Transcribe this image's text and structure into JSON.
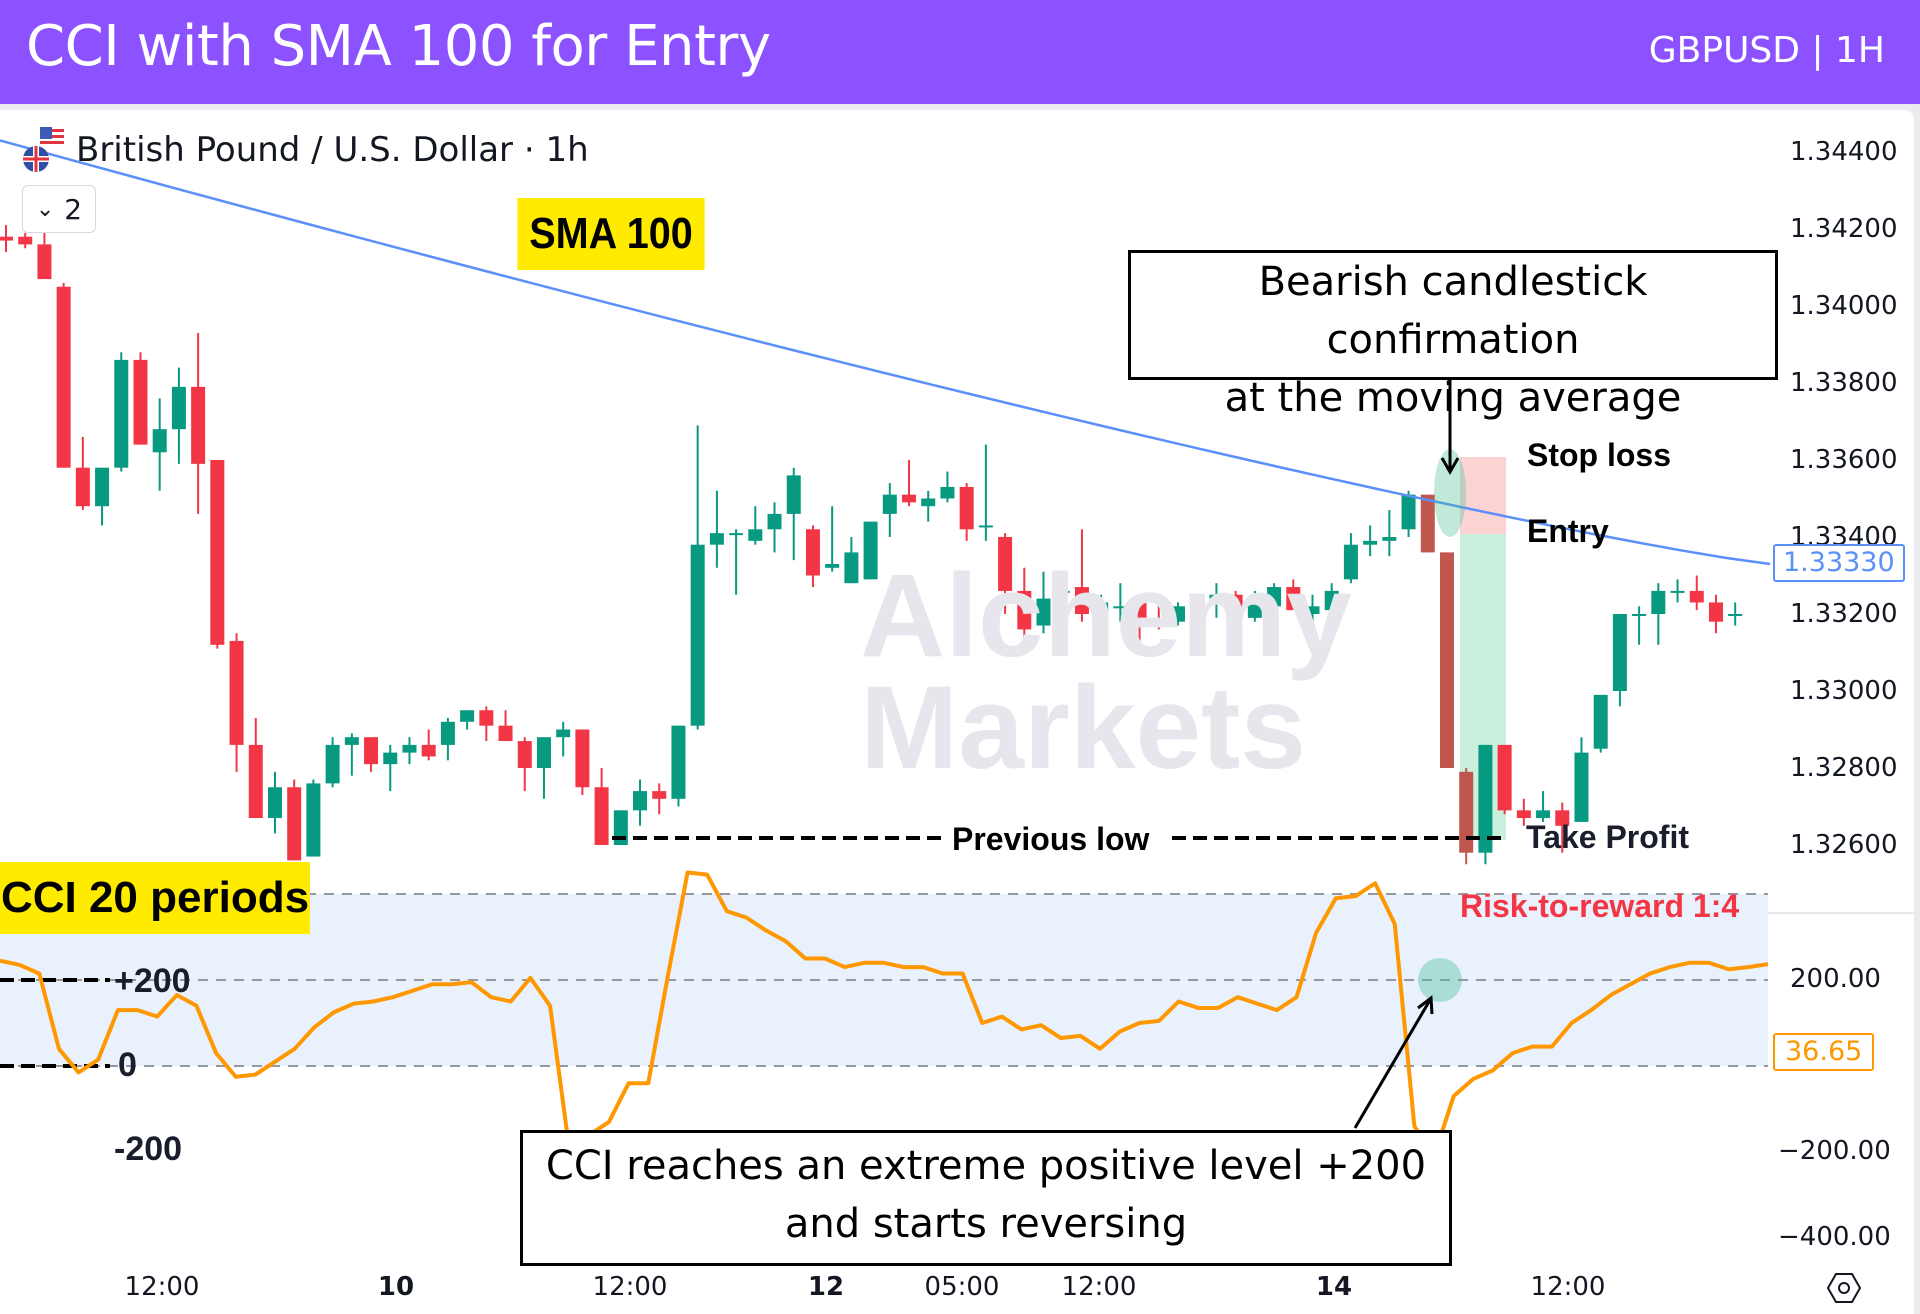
{
  "header": {
    "title": "CCI with SMA 100 for Entry",
    "symbol_tag": "GBPUSD | 1H",
    "bg_color": "#8c52ff"
  },
  "chart_header": {
    "instrument": "British Pound / U.S. Dollar · 1h",
    "collapse_count": "2",
    "flag_icons": [
      "us-flag-icon",
      "uk-flag-icon"
    ]
  },
  "labels": {
    "sma": "SMA 100",
    "cci": "CCI 20 periods",
    "watermark_line1": "Alchemy",
    "watermark_line2": "Markets",
    "stop_loss": "Stop loss",
    "entry": "Entry",
    "take_profit": "Take Profit",
    "previous_low": "Previous low",
    "risk_reward": "Risk-to-reward 1:4",
    "annotation_top_line1": "Bearish candlestick confirmation",
    "annotation_top_line2": "at the moving average",
    "annotation_bottom_line1": "CCI reaches an extreme positive level +200",
    "annotation_bottom_line2": "and starts reversing",
    "cci_plus200": "+200",
    "cci_zero": "0",
    "cci_minus200": "-200"
  },
  "price_axis": {
    "ticks": [
      "1.34400",
      "1.34200",
      "1.34000",
      "1.33800",
      "1.33600",
      "1.33400",
      "1.33200",
      "1.33000",
      "1.32800",
      "1.32600"
    ],
    "current_sma": "1.33330"
  },
  "cci_axis": {
    "ticks": [
      "200.00",
      "0.00",
      "−200.00",
      "−400.00"
    ],
    "current": "36.65"
  },
  "time_axis": {
    "ticks": [
      {
        "label": "12:00",
        "bold": false
      },
      {
        "label": "10",
        "bold": true
      },
      {
        "label": "12:00",
        "bold": false
      },
      {
        "label": "12",
        "bold": true
      },
      {
        "label": "05:00",
        "bold": false
      },
      {
        "label": "12:00",
        "bold": false
      },
      {
        "label": "14",
        "bold": true
      },
      {
        "label": "12:00",
        "bold": false
      }
    ]
  },
  "colors": {
    "bull": "#089981",
    "bear": "#f23645",
    "sma": "#5b8ff9",
    "cci": "#ff9800",
    "highlight_yellow": "#ffeb00",
    "stop_zone": "#fcd3d3",
    "profit_zone": "#c9f0dd",
    "risk_reward_text": "#f23645"
  },
  "chart_data": [
    {
      "type": "candlestick",
      "title": "British Pound / U.S. Dollar · 1h",
      "ylabel": "Price",
      "ylim": [
        1.3252,
        1.3445
      ],
      "y_ticks": [
        1.344,
        1.342,
        1.34,
        1.338,
        1.336,
        1.334,
        1.332,
        1.33,
        1.328,
        1.326
      ],
      "x_ticks": [
        "12:00",
        "10",
        "12:00",
        "12",
        "05:00",
        "12:00",
        "14",
        "12:00"
      ],
      "columns": [
        "open",
        "high",
        "low",
        "close"
      ],
      "candles": [
        [
          1.3418,
          1.3421,
          1.3414,
          1.3417
        ],
        [
          1.3418,
          1.3419,
          1.3415,
          1.3416
        ],
        [
          1.3416,
          1.342,
          1.3408,
          1.3407
        ],
        [
          1.3405,
          1.3406,
          1.3358,
          1.3358
        ],
        [
          1.3358,
          1.3366,
          1.3347,
          1.3348
        ],
        [
          1.3348,
          1.3358,
          1.3343,
          1.3358
        ],
        [
          1.3358,
          1.3388,
          1.3357,
          1.3386
        ],
        [
          1.3386,
          1.3388,
          1.3364,
          1.3364
        ],
        [
          1.3362,
          1.3376,
          1.3352,
          1.3368
        ],
        [
          1.3368,
          1.3384,
          1.3359,
          1.3379
        ],
        [
          1.3379,
          1.3393,
          1.3346,
          1.3359
        ],
        [
          1.336,
          1.336,
          1.3311,
          1.3312
        ],
        [
          1.3313,
          1.3315,
          1.3279,
          1.3286
        ],
        [
          1.3286,
          1.3293,
          1.3278,
          1.3267
        ],
        [
          1.3267,
          1.3279,
          1.3263,
          1.3275
        ],
        [
          1.3275,
          1.3277,
          1.3261,
          1.3256
        ],
        [
          1.3257,
          1.3277,
          1.3257,
          1.3276
        ],
        [
          1.3276,
          1.3288,
          1.3275,
          1.3286
        ],
        [
          1.3286,
          1.3289,
          1.3278,
          1.3288
        ],
        [
          1.3288,
          1.3288,
          1.3279,
          1.3281
        ],
        [
          1.3281,
          1.3286,
          1.3274,
          1.3284
        ],
        [
          1.3284,
          1.3288,
          1.3281,
          1.3286
        ],
        [
          1.3286,
          1.329,
          1.3282,
          1.3283
        ],
        [
          1.3286,
          1.3293,
          1.3282,
          1.3292
        ],
        [
          1.3292,
          1.3295,
          1.329,
          1.3295
        ],
        [
          1.3295,
          1.3296,
          1.3287,
          1.3291
        ],
        [
          1.3291,
          1.3295,
          1.3287,
          1.3287
        ],
        [
          1.3287,
          1.3288,
          1.3274,
          1.328
        ],
        [
          1.328,
          1.3286,
          1.3272,
          1.3288
        ],
        [
          1.3288,
          1.3292,
          1.3283,
          1.329
        ],
        [
          1.329,
          1.329,
          1.3273,
          1.3275
        ],
        [
          1.3275,
          1.328,
          1.326,
          1.326
        ],
        [
          1.326,
          1.3269,
          1.326,
          1.3269
        ],
        [
          1.3269,
          1.3277,
          1.3265,
          1.3274
        ],
        [
          1.3274,
          1.3276,
          1.3268,
          1.3272
        ],
        [
          1.3272,
          1.3291,
          1.327,
          1.3291
        ],
        [
          1.3291,
          1.3369,
          1.329,
          1.3338
        ],
        [
          1.3338,
          1.3352,
          1.3332,
          1.3341
        ],
        [
          1.3341,
          1.3342,
          1.3325,
          1.3341
        ],
        [
          1.3339,
          1.3348,
          1.3338,
          1.3342
        ],
        [
          1.3342,
          1.3349,
          1.3336,
          1.3346
        ],
        [
          1.3346,
          1.3358,
          1.3334,
          1.3356
        ],
        [
          1.3342,
          1.3343,
          1.3327,
          1.333
        ],
        [
          1.3332,
          1.3348,
          1.3331,
          1.3333
        ],
        [
          1.3328,
          1.334,
          1.3328,
          1.3336
        ],
        [
          1.3329,
          1.3344,
          1.3329,
          1.3344
        ],
        [
          1.3346,
          1.3354,
          1.334,
          1.3351
        ],
        [
          1.3351,
          1.336,
          1.3348,
          1.3349
        ],
        [
          1.3348,
          1.3352,
          1.3344,
          1.335
        ],
        [
          1.335,
          1.3357,
          1.3349,
          1.3353
        ],
        [
          1.3353,
          1.3354,
          1.3339,
          1.3342
        ],
        [
          1.3343,
          1.3364,
          1.3339,
          1.3343
        ],
        [
          1.334,
          1.3341,
          1.332,
          1.3326
        ],
        [
          1.3326,
          1.3332,
          1.3313,
          1.3316
        ],
        [
          1.3317,
          1.3331,
          1.3315,
          1.3324
        ],
        [
          1.3326,
          1.333,
          1.3315,
          1.3326
        ],
        [
          1.3327,
          1.3342,
          1.3318,
          1.332
        ],
        [
          1.332,
          1.3325,
          1.3317,
          1.3323
        ],
        [
          1.3322,
          1.3328,
          1.3318,
          1.3322
        ],
        [
          1.3323,
          1.3325,
          1.3313,
          1.3319
        ],
        [
          1.3319,
          1.3325,
          1.3316,
          1.3318
        ],
        [
          1.3318,
          1.3323,
          1.3317,
          1.3322
        ],
        [
          1.332,
          1.3325,
          1.3319,
          1.3323
        ],
        [
          1.3324,
          1.3328,
          1.3319,
          1.3325
        ],
        [
          1.3325,
          1.3326,
          1.332,
          1.332
        ],
        [
          1.3319,
          1.3326,
          1.3318,
          1.3323
        ],
        [
          1.3322,
          1.3328,
          1.3318,
          1.3327
        ],
        [
          1.3327,
          1.3329,
          1.3322,
          1.3321
        ],
        [
          1.332,
          1.3325,
          1.3317,
          1.3322
        ],
        [
          1.3321,
          1.3328,
          1.3318,
          1.3326
        ],
        [
          1.3329,
          1.3341,
          1.3328,
          1.3338
        ],
        [
          1.3338,
          1.3343,
          1.3335,
          1.3339
        ],
        [
          1.3339,
          1.3347,
          1.3335,
          1.334
        ],
        [
          1.3342,
          1.3352,
          1.334,
          1.3351
        ],
        [
          1.3351,
          1.3351,
          1.3336,
          1.3336
        ],
        [
          1.3336,
          1.3336,
          1.328,
          1.328
        ],
        [
          1.3279,
          1.328,
          1.3255,
          1.3258
        ],
        [
          1.3258,
          1.3286,
          1.3255,
          1.3286
        ],
        [
          1.3286,
          1.3286,
          1.3268,
          1.3269
        ],
        [
          1.3269,
          1.3272,
          1.3265,
          1.3267
        ],
        [
          1.3267,
          1.3274,
          1.3266,
          1.3269
        ],
        [
          1.3269,
          1.3271,
          1.3258,
          1.3265
        ],
        [
          1.3266,
          1.3288,
          1.3266,
          1.3284
        ],
        [
          1.3285,
          1.3295,
          1.3284,
          1.3299
        ],
        [
          1.33,
          1.331,
          1.3296,
          1.332
        ],
        [
          1.332,
          1.3322,
          1.3312,
          1.332
        ],
        [
          1.332,
          1.3328,
          1.3312,
          1.3326
        ],
        [
          1.3326,
          1.3329,
          1.3323,
          1.3326
        ],
        [
          1.3326,
          1.333,
          1.3321,
          1.3323
        ],
        [
          1.3323,
          1.3325,
          1.3315,
          1.3318
        ],
        [
          1.332,
          1.3323,
          1.3317,
          1.332
        ]
      ],
      "series": [
        {
          "name": "SMA 100",
          "color": "#5b8ff9",
          "last_value": 1.3333,
          "values_start_end": [
            1.3443,
            1.3333
          ]
        }
      ],
      "annotations": [
        "SMA 100",
        "Bearish candlestick confirmation at the moving average",
        "Stop loss",
        "Entry",
        "Take Profit",
        "Previous low",
        "Risk-to-reward 1:4"
      ]
    },
    {
      "type": "line",
      "title": "CCI 20 periods",
      "ylabel": "CCI",
      "ylim": [
        -430,
        250
      ],
      "y_ticks": [
        200,
        0,
        -200,
        -400
      ],
      "band": [
        -200,
        200
      ],
      "series": [
        {
          "name": "CCI",
          "color": "#ff9800",
          "values": [
            45,
            35,
            15,
            -160,
            -215,
            -185,
            -70,
            -70,
            -85,
            -35,
            -60,
            -170,
            -225,
            -220,
            -190,
            -160,
            -110,
            -75,
            -55,
            -50,
            -40,
            -25,
            -10,
            -10,
            -5,
            -40,
            -50,
            5,
            -60,
            -400,
            -360,
            -330,
            -240,
            -240,
            10,
            250,
            245,
            160,
            145,
            115,
            90,
            50,
            50,
            30,
            40,
            40,
            30,
            30,
            15,
            15,
            -100,
            -85,
            -115,
            -105,
            -135,
            -130,
            -160,
            -120,
            -100,
            -95,
            -50,
            -65,
            -65,
            -40,
            -55,
            -70,
            -40,
            110,
            190,
            195,
            225,
            130,
            -340,
            -410,
            -270,
            -230,
            -210,
            -170,
            -155,
            -155,
            -100,
            -70,
            -35,
            -10,
            15,
            30,
            40,
            40,
            25,
            30,
            37
          ]
        }
      ],
      "current": 36.65,
      "annotations": [
        "+200",
        "0",
        "-200",
        "CCI reaches an extreme positive level +200 and starts reversing"
      ]
    }
  ]
}
